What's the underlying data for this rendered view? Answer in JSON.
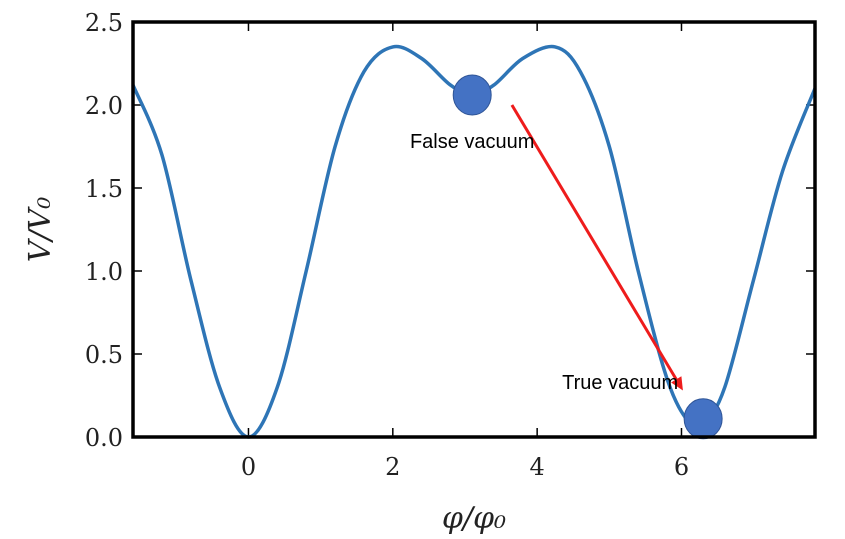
{
  "chart_data": {
    "type": "line",
    "title": "",
    "xlabel": "φ/φ₀",
    "ylabel": "V/V₀",
    "xlim": [
      -1.6,
      7.85
    ],
    "ylim": [
      0,
      2.5
    ],
    "x_ticks": [
      {
        "value": 0,
        "label": "0"
      },
      {
        "value": 2,
        "label": "2"
      },
      {
        "value": 4,
        "label": "4"
      },
      {
        "value": 6,
        "label": "6"
      }
    ],
    "y_ticks": [
      {
        "value": 0.0,
        "label": "0.0"
      },
      {
        "value": 0.5,
        "label": "0.5"
      },
      {
        "value": 1.0,
        "label": "1.0"
      },
      {
        "value": 1.5,
        "label": "1.5"
      },
      {
        "value": 2.0,
        "label": "2.0"
      },
      {
        "value": 2.5,
        "label": "2.5"
      }
    ],
    "grid": false,
    "series": [
      {
        "color": "#2e75b6",
        "x": [
          -1.6,
          -1.2,
          -0.8,
          -0.4,
          0.0,
          0.4,
          0.8,
          1.2,
          1.6,
          2.0,
          2.4,
          2.8,
          3.1,
          3.4,
          3.8,
          4.25,
          4.6,
          5.0,
          5.4,
          5.8,
          6.1,
          6.3,
          6.6,
          7.0,
          7.4,
          7.85
        ],
        "y": [
          2.12,
          1.7,
          0.95,
          0.3,
          0.0,
          0.3,
          1.0,
          1.75,
          2.2,
          2.35,
          2.28,
          2.12,
          2.06,
          2.12,
          2.28,
          2.35,
          2.2,
          1.75,
          1.0,
          0.35,
          0.09,
          0.07,
          0.3,
          0.95,
          1.6,
          2.1
        ]
      }
    ],
    "markers": [
      {
        "name": "false-vacuum-ball",
        "x": 3.1,
        "y": 2.06,
        "color": "#4472c4"
      },
      {
        "name": "true-vacuum-ball",
        "x": 6.3,
        "y": 0.11,
        "color": "#4472c4"
      }
    ],
    "arrow": {
      "from": [
        3.65,
        2.0
      ],
      "to": [
        6.02,
        0.28
      ],
      "color": "#ee1c1c"
    },
    "annotations": [
      {
        "name": "false-vacuum-label",
        "text": "False vacuum",
        "x": 3.1,
        "y": 1.74
      },
      {
        "name": "true-vacuum-label",
        "text": "True vacuum",
        "x": 5.15,
        "y": 0.29
      }
    ]
  }
}
